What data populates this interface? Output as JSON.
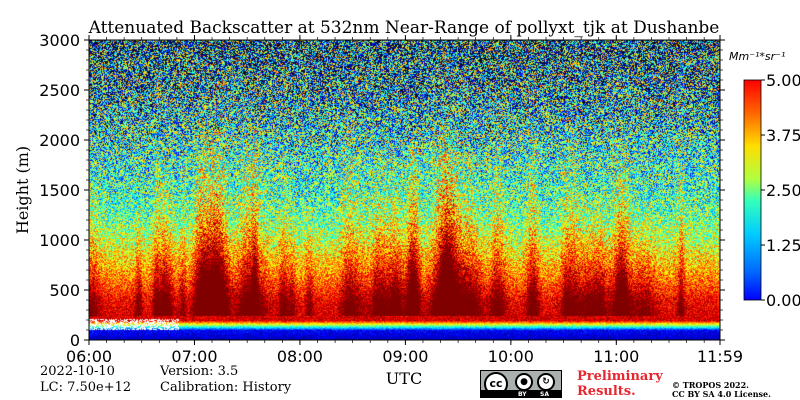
{
  "chart_data": {
    "type": "heatmap",
    "title": "Attenuated Backscatter at 532nm Near-Range of pollyxt_tjk at Dushanbe",
    "xlabel": "UTC",
    "ylabel": "Height (m)",
    "xlim": [
      "06:00",
      "11:59"
    ],
    "ylim": [
      0,
      3000
    ],
    "x_ticks": [
      "06:00",
      "07:00",
      "08:00",
      "09:00",
      "10:00",
      "11:00",
      "11:59"
    ],
    "y_ticks": [
      0,
      500,
      1000,
      1500,
      2000,
      2500,
      3000
    ],
    "colorbar": {
      "unit_label": "Mm⁻¹*sr⁻¹",
      "ticks": [
        "5.00",
        "3.75",
        "2.50",
        "1.25",
        "0.00"
      ],
      "range": [
        0,
        5
      ],
      "colormap": "jet"
    },
    "backscatter_profile": [
      {
        "height": 0,
        "value": 0.3
      },
      {
        "height": 100,
        "value": 0.6
      },
      {
        "height": 200,
        "value": 4.6
      },
      {
        "height": 400,
        "value": 4.4
      },
      {
        "height": 600,
        "value": 3.8
      },
      {
        "height": 800,
        "value": 3.3
      },
      {
        "height": 1000,
        "value": 2.8
      },
      {
        "height": 1200,
        "value": 2.4
      },
      {
        "height": 1500,
        "value": 2.1
      },
      {
        "height": 2000,
        "value": 2.0
      },
      {
        "height": 2500,
        "value": 1.9
      },
      {
        "height": 3000,
        "value": 1.8
      }
    ]
  },
  "footer": {
    "date": "2022-10-10",
    "lc": "LC: 7.50e+12",
    "version": "Version: 3.5",
    "calibration": "Calibration: History",
    "preliminary_line1": "Preliminary",
    "preliminary_line2": "Results.",
    "copyright_line1": "© TROPOS 2022.",
    "copyright_line2": "CC BY SA 4.0 License.",
    "license_badge": {
      "cc": "cc",
      "by": "BY",
      "sa": "SA"
    }
  },
  "colors": {
    "background": "#ffffff",
    "preliminary": "#e8262f"
  }
}
